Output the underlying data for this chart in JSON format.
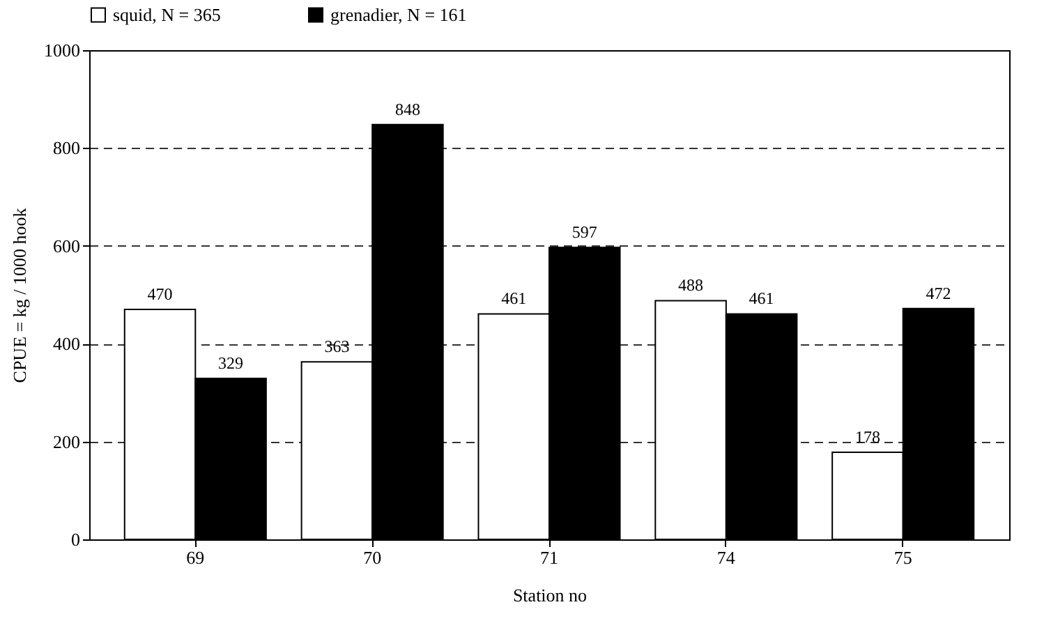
{
  "chart_data": {
    "type": "bar",
    "xlabel": "Station no",
    "ylabel": "CPUE = kg / 1000 hook",
    "categories": [
      "69",
      "70",
      "71",
      "74",
      "75"
    ],
    "series": [
      {
        "name": "squid, N = 365",
        "color": "#ffffff",
        "values": [
          470,
          363,
          461,
          488,
          178
        ]
      },
      {
        "name": "grenadier, N = 161",
        "color": "#000000",
        "values": [
          329,
          848,
          597,
          461,
          472
        ]
      }
    ],
    "ylim": [
      0,
      1000
    ],
    "yticks": [
      0,
      200,
      400,
      600,
      800,
      1000
    ],
    "grid": "y",
    "legend": "top",
    "data_labels": true
  }
}
